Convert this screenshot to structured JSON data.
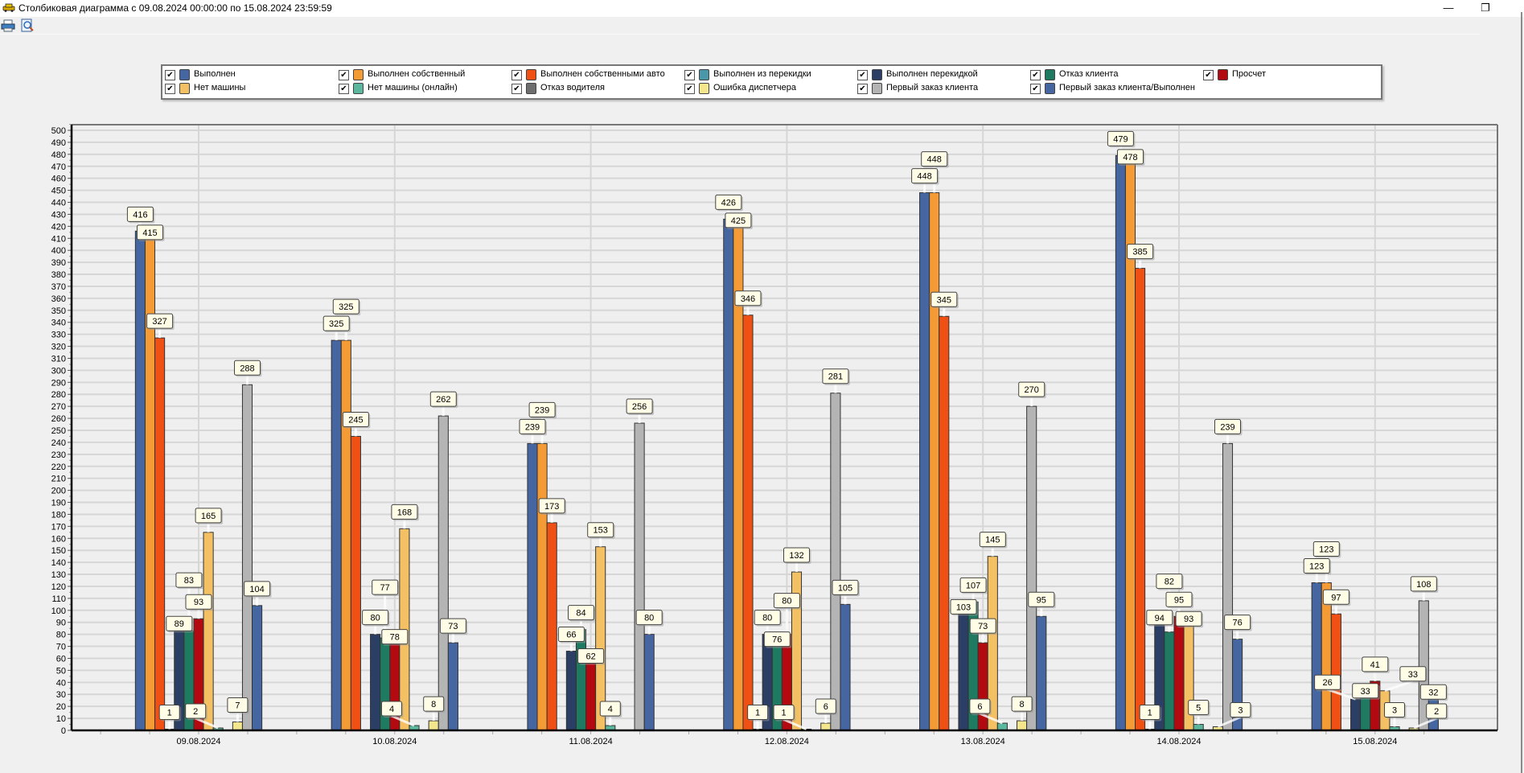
{
  "window": {
    "title": "Столбиковая диаграмма с 09.08.2024 00:00:00 по 15.08.2024 23:59:59",
    "minimize_glyph": "—",
    "restore_glyph": "❐",
    "app_icon": "taxi-icon"
  },
  "toolbar": {
    "print_icon": "print-icon",
    "preview_icon": "print-preview-icon"
  },
  "chart_data": {
    "type": "bar",
    "title": "Столбиковая диаграмма с 09.08.2024 00:00:00 по 15.08.2024 23:59:59",
    "xlabel": "",
    "ylabel": "",
    "ylim": [
      0,
      505
    ],
    "ytick_step": 10,
    "grid": true,
    "legend_placement": "top",
    "categories": [
      "09.08.2024",
      "10.08.2024",
      "11.08.2024",
      "12.08.2024",
      "13.08.2024",
      "14.08.2024",
      "15.08.2024"
    ],
    "series": [
      {
        "name": "Выполнен",
        "color": "#4566a1",
        "checked": true,
        "values": [
          416,
          325,
          239,
          426,
          448,
          479,
          123
        ]
      },
      {
        "name": "Выполнен собственный",
        "color": "#f59b36",
        "checked": true,
        "values": [
          415,
          325,
          239,
          425,
          448,
          478,
          123
        ]
      },
      {
        "name": "Выполнен собственными авто",
        "color": "#f05014",
        "checked": true,
        "values": [
          327,
          245,
          173,
          346,
          345,
          385,
          97
        ]
      },
      {
        "name": "Выполнен из перекидки",
        "color": "#4a97a9",
        "checked": true,
        "values": [
          1,
          0,
          0,
          1,
          0,
          1,
          0
        ]
      },
      {
        "name": "Выполнен перекидкой",
        "color": "#2b3e64",
        "checked": true,
        "values": [
          89,
          80,
          66,
          80,
          103,
          94,
          26
        ]
      },
      {
        "name": "Отказ клиента",
        "color": "#1f7a62",
        "checked": true,
        "values": [
          83,
          77,
          84,
          76,
          107,
          82,
          33
        ]
      },
      {
        "name": "Просчет",
        "color": "#b20a10",
        "checked": true,
        "values": [
          93,
          78,
          62,
          80,
          73,
          95,
          41
        ]
      },
      {
        "name": "Нет машины",
        "color": "#f3c063",
        "checked": true,
        "values": [
          165,
          168,
          153,
          132,
          145,
          93,
          33
        ]
      },
      {
        "name": "Нет машины (онлайн)",
        "color": "#5bb89e",
        "checked": true,
        "values": [
          2,
          4,
          4,
          1,
          6,
          5,
          3
        ]
      },
      {
        "name": "Отказ водителя",
        "color": "#6e6e6e",
        "checked": true,
        "values": [
          0,
          0,
          0,
          0,
          0,
          0,
          0
        ]
      },
      {
        "name": "Ошибка диспетчера",
        "color": "#f3e68c",
        "checked": true,
        "values": [
          7,
          8,
          0,
          6,
          8,
          3,
          2
        ]
      },
      {
        "name": "Первый заказ клиента",
        "color": "#b4b4b4",
        "checked": true,
        "values": [
          288,
          262,
          256,
          281,
          270,
          239,
          108
        ]
      },
      {
        "name": "Первый заказ клиента/Выполнен",
        "color": "#4566a1",
        "checked": true,
        "values": [
          104,
          73,
          80,
          105,
          95,
          76,
          32
        ]
      }
    ]
  },
  "legend_order": [
    0,
    1,
    2,
    3,
    4,
    5,
    6,
    7,
    8,
    9,
    10,
    11,
    12
  ]
}
